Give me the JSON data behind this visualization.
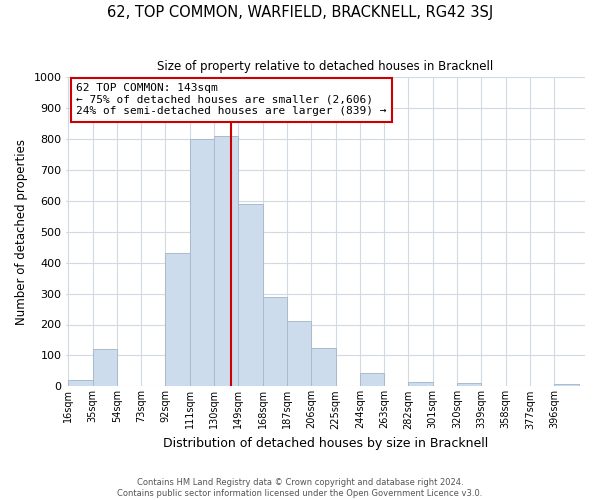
{
  "title": "62, TOP COMMON, WARFIELD, BRACKNELL, RG42 3SJ",
  "subtitle": "Size of property relative to detached houses in Bracknell",
  "xlabel": "Distribution of detached houses by size in Bracknell",
  "ylabel": "Number of detached properties",
  "bar_color": "#ccdcec",
  "bar_edge_color": "#aabbcc",
  "vline_color": "#cc0000",
  "vline_x": 143,
  "categories": [
    "16sqm",
    "35sqm",
    "54sqm",
    "73sqm",
    "92sqm",
    "111sqm",
    "130sqm",
    "149sqm",
    "168sqm",
    "187sqm",
    "206sqm",
    "225sqm",
    "244sqm",
    "263sqm",
    "282sqm",
    "301sqm",
    "320sqm",
    "339sqm",
    "358sqm",
    "377sqm",
    "396sqm"
  ],
  "bin_left_edges": [
    16,
    35,
    54,
    73,
    92,
    111,
    130,
    149,
    168,
    187,
    206,
    225,
    244,
    263,
    282,
    301,
    320,
    339,
    358,
    377,
    396
  ],
  "bin_width": 19,
  "bar_heights": [
    20,
    120,
    0,
    0,
    430,
    800,
    810,
    590,
    290,
    210,
    125,
    0,
    42,
    0,
    15,
    0,
    10,
    0,
    0,
    0,
    8
  ],
  "ylim": [
    0,
    1000
  ],
  "yticks": [
    0,
    100,
    200,
    300,
    400,
    500,
    600,
    700,
    800,
    900,
    1000
  ],
  "annotation_text_line1": "62 TOP COMMON: 143sqm",
  "annotation_text_line2": "← 75% of detached houses are smaller (2,606)",
  "annotation_text_line3": "24% of semi-detached houses are larger (839) →",
  "footer_line1": "Contains HM Land Registry data © Crown copyright and database right 2024.",
  "footer_line2": "Contains public sector information licensed under the Open Government Licence v3.0.",
  "background_color": "#ffffff",
  "grid_color": "#d0dae4"
}
